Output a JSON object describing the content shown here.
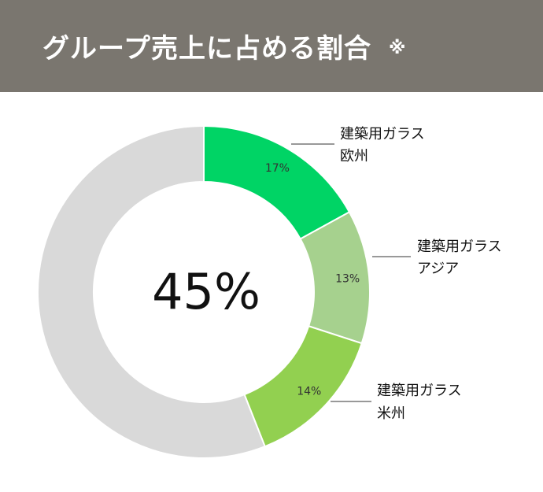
{
  "header": {
    "title": "グループ売上に占める割合",
    "mark": "※"
  },
  "chart_data": {
    "type": "pie",
    "style": "donut",
    "center_label": "45%",
    "categories": [
      "建築用ガラス 欧州",
      "建築用ガラス アジア",
      "建築用ガラス 米州",
      ""
    ],
    "series": [
      {
        "values": [
          17,
          13,
          14,
          56
        ]
      }
    ],
    "data_labels": [
      "17%",
      "13%",
      "14%",
      ""
    ],
    "legend": [
      {
        "line1": "建築用ガラス",
        "line2": "欧州"
      },
      {
        "line1": "建築用ガラス",
        "line2": "アジア"
      },
      {
        "line1": "建築用ガラス",
        "line2": "米州"
      }
    ],
    "colors": [
      "#00d465",
      "#a6d18e",
      "#92d050",
      "#d9d9d9"
    ]
  }
}
